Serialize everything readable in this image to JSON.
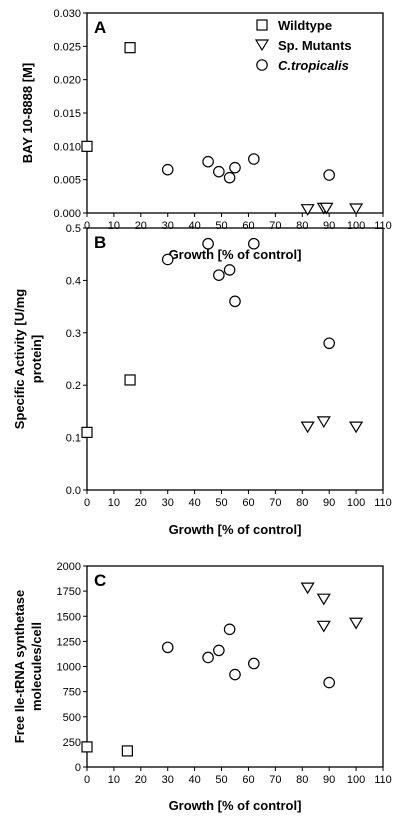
{
  "chart_data": [
    {
      "type": "scatter",
      "panel": "A",
      "xlabel": "Growth [% of control]",
      "ylabel": "BAY 10-8888 [M]",
      "xlim": [
        0,
        110
      ],
      "ylim": [
        0,
        0.03
      ],
      "xticks": [
        0,
        10,
        20,
        30,
        40,
        50,
        60,
        70,
        80,
        90,
        100,
        110
      ],
      "xtick_labels": [
        "0",
        "10",
        "20",
        "30",
        "40",
        "50",
        "60",
        "70",
        "80",
        "90",
        "100",
        "110"
      ],
      "yticks": [
        0,
        0.005,
        0.01,
        0.015,
        0.02,
        0.025,
        0.03
      ],
      "ytick_labels": [
        "0.000",
        "0.005",
        "0.010",
        "0.015",
        "0.020",
        "0.025",
        "0.030"
      ],
      "legend_position": "top-right",
      "series": [
        {
          "name": "Wildtype",
          "marker": "square",
          "points": [
            [
              0,
              0.01
            ],
            [
              16,
              0.0248
            ]
          ]
        },
        {
          "name": "Sp. Mutants",
          "marker": "triangle-down",
          "points": [
            [
              82,
              0.0005
            ],
            [
              88,
              0.0007
            ],
            [
              89,
              0.0007
            ],
            [
              100,
              0.0006
            ]
          ]
        },
        {
          "name": "C.tropicalis",
          "marker": "circle",
          "italic": true,
          "points": [
            [
              30,
              0.0065
            ],
            [
              45,
              0.0077
            ],
            [
              49,
              0.0062
            ],
            [
              53,
              0.0053
            ],
            [
              55,
              0.0068
            ],
            [
              62,
              0.0081
            ],
            [
              90,
              0.0057
            ]
          ]
        }
      ]
    },
    {
      "type": "scatter",
      "panel": "B",
      "xlabel": "Growth [% of control]",
      "ylabel_lines": [
        "Specific Activity [U/mg",
        "protein]"
      ],
      "xlim": [
        0,
        110
      ],
      "ylim": [
        0,
        0.5
      ],
      "xticks": [
        0,
        10,
        20,
        30,
        40,
        50,
        60,
        70,
        80,
        90,
        100,
        110
      ],
      "xtick_labels": [
        "0",
        "10",
        "20",
        "30",
        "40",
        "50",
        "60",
        "70",
        "80",
        "90",
        "100",
        "110"
      ],
      "yticks": [
        0,
        0.1,
        0.2,
        0.3,
        0.4,
        0.5
      ],
      "ytick_labels": [
        "0.0",
        "0.1",
        "0.2",
        "0.3",
        "0.4",
        "0.5"
      ],
      "series": [
        {
          "marker": "square",
          "points": [
            [
              0,
              0.11
            ],
            [
              16,
              0.21
            ]
          ]
        },
        {
          "marker": "triangle-down",
          "points": [
            [
              82,
              0.12
            ],
            [
              88,
              0.13
            ],
            [
              100,
              0.12
            ]
          ]
        },
        {
          "marker": "circle",
          "points": [
            [
              30,
              0.44
            ],
            [
              45,
              0.47
            ],
            [
              49,
              0.41
            ],
            [
              53,
              0.42
            ],
            [
              55,
              0.36
            ],
            [
              62,
              0.47
            ],
            [
              90,
              0.28
            ]
          ]
        }
      ]
    },
    {
      "type": "scatter",
      "panel": "C",
      "xlabel": "Growth [% of control]",
      "ylabel_lines": [
        "Free Ile-tRNA synthetase",
        "molecules/cell"
      ],
      "xlim": [
        0,
        110
      ],
      "ylim": [
        0,
        2000
      ],
      "xticks": [
        0,
        10,
        20,
        30,
        40,
        50,
        60,
        70,
        80,
        90,
        100,
        110
      ],
      "xtick_labels": [
        "0",
        "10",
        "20",
        "30",
        "40",
        "50",
        "60",
        "70",
        "80",
        "90",
        "100",
        "110"
      ],
      "yticks": [
        0,
        250,
        500,
        750,
        1000,
        1250,
        1500,
        1750,
        2000
      ],
      "ytick_labels": [
        "0",
        "250",
        "500",
        "750",
        "1000",
        "1250",
        "1500",
        "1750",
        "2000"
      ],
      "series": [
        {
          "marker": "square",
          "points": [
            [
              0,
              200
            ],
            [
              15,
              160
            ]
          ]
        },
        {
          "marker": "triangle-down",
          "points": [
            [
              82,
              1780
            ],
            [
              88,
              1670
            ],
            [
              88,
              1400
            ],
            [
              100,
              1430
            ]
          ]
        },
        {
          "marker": "circle",
          "points": [
            [
              30,
              1190
            ],
            [
              45,
              1090
            ],
            [
              49,
              1160
            ],
            [
              53,
              1370
            ],
            [
              55,
              920
            ],
            [
              62,
              1030
            ],
            [
              90,
              840
            ]
          ]
        }
      ]
    }
  ]
}
